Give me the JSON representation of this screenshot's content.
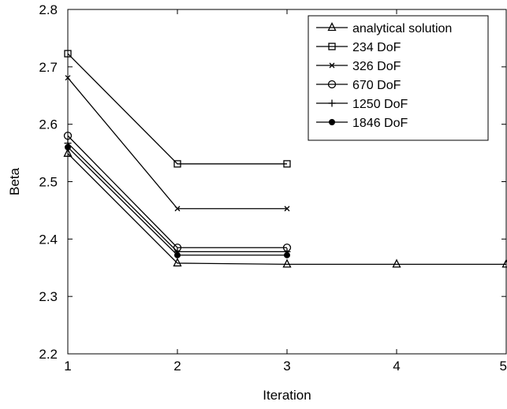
{
  "chart_data": {
    "type": "line",
    "title": "",
    "xlabel": "Iteration",
    "ylabel": "Beta",
    "xlim": [
      1,
      5
    ],
    "ylim": [
      2.2,
      2.8
    ],
    "x_ticks": [
      "1",
      "2",
      "3",
      "4",
      "5"
    ],
    "y_ticks": [
      "2.2",
      "2.3",
      "2.4",
      "2.5",
      "2.6",
      "2.7",
      "2.8"
    ],
    "grid": false,
    "legend_position": "top-right",
    "colors": {
      "line": "#000000",
      "axes": "#000000",
      "background": "#ffffff"
    },
    "series": [
      {
        "name": "analytical solution",
        "marker": "triangle",
        "x": [
          1,
          2,
          3,
          4,
          5
        ],
        "y": [
          2.549,
          2.358,
          2.356,
          2.356,
          2.356
        ]
      },
      {
        "name": "234 DoF",
        "marker": "square",
        "x": [
          1,
          2,
          3
        ],
        "y": [
          2.723,
          2.531,
          2.531
        ]
      },
      {
        "name": "326 DoF",
        "marker": "x",
        "x": [
          1,
          2,
          3
        ],
        "y": [
          2.681,
          2.453,
          2.453
        ]
      },
      {
        "name": "670 DoF",
        "marker": "circle",
        "x": [
          1,
          2,
          3
        ],
        "y": [
          2.58,
          2.385,
          2.385
        ]
      },
      {
        "name": "1250 DoF",
        "marker": "plus",
        "x": [
          1,
          2,
          3
        ],
        "y": [
          2.567,
          2.378,
          2.378
        ]
      },
      {
        "name": "1846 DoF",
        "marker": "dot",
        "x": [
          1,
          2,
          3
        ],
        "y": [
          2.56,
          2.372,
          2.372
        ]
      }
    ]
  }
}
